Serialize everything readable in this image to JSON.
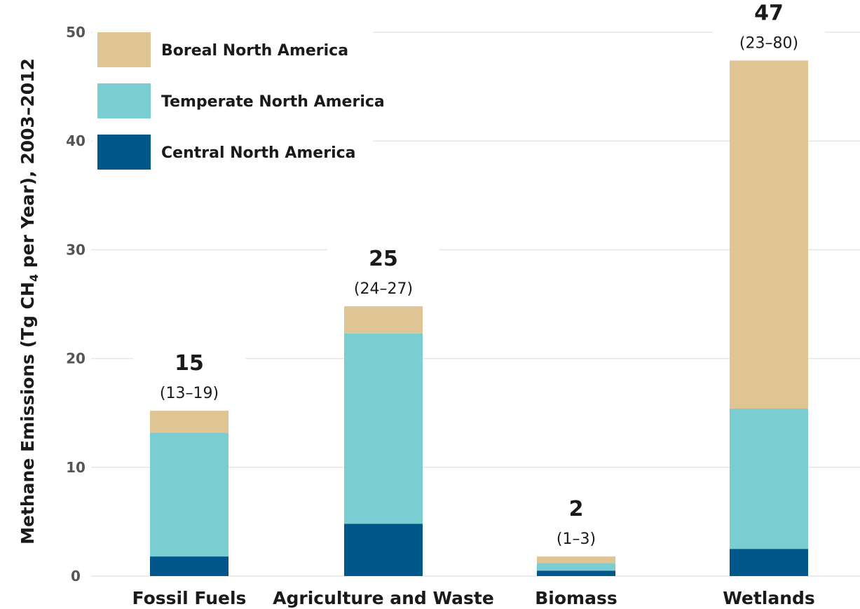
{
  "chart_data": {
    "type": "bar",
    "stacked": true,
    "categories": [
      "Fossil Fuels",
      "Agriculture and Waste",
      "Biomass",
      "Wetlands"
    ],
    "series": [
      {
        "name": "Central North America",
        "color": "#00578a",
        "values": [
          1.8,
          4.8,
          0.5,
          2.5
        ]
      },
      {
        "name": "Temperate North America",
        "color": "#7acdd0",
        "values": [
          11.4,
          17.5,
          0.7,
          12.9
        ]
      },
      {
        "name": "Boreal North America",
        "color": "#dfc594",
        "values": [
          2.0,
          2.5,
          0.6,
          32.0
        ]
      }
    ],
    "totals": [
      "15",
      "25",
      "2",
      "47"
    ],
    "ranges": [
      "(13–19)",
      "(24–27)",
      "(1–3)",
      "(23–80)"
    ],
    "ylabel_main": "Methane Emissions (Tg CH",
    "ylabel_sub": "4",
    "ylabel_tail": " per Year), 2003–2012",
    "ylim": [
      0,
      50
    ],
    "yticks": [
      0,
      10,
      20,
      30,
      40,
      50
    ],
    "legend": {
      "position": "top-left",
      "order": [
        "Boreal North America",
        "Temperate North America",
        "Central North America"
      ]
    },
    "grid": true
  }
}
